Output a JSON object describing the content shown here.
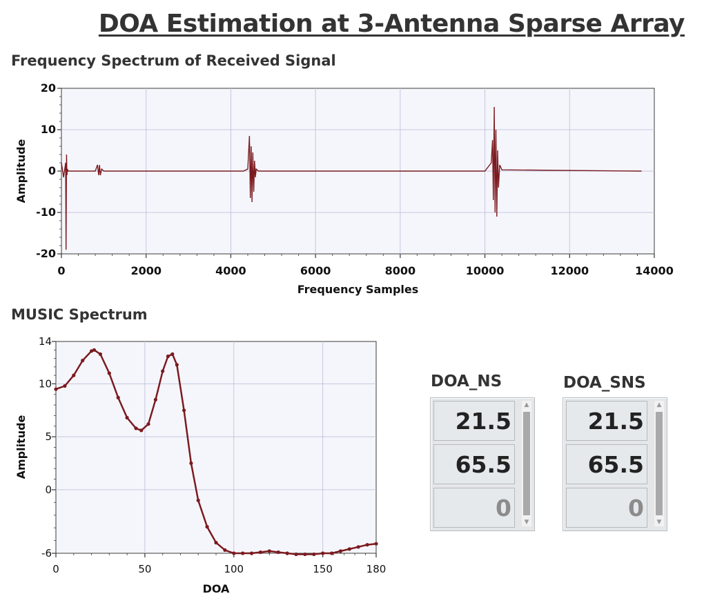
{
  "title": "DOA Estimation at 3-Antenna Sparse Array",
  "spectrum_section_title": "Frequency Spectrum of Received Signal",
  "music_section_title": "MUSIC Spectrum",
  "colors": {
    "trace": "#7b1a1f",
    "plot_bg": "#f5f6fb",
    "grid": "#c5c5e0"
  },
  "doa_ns": {
    "label": "DOA_NS",
    "values": [
      "21.5",
      "65.5",
      "0"
    ]
  },
  "doa_sns": {
    "label": "DOA_SNS",
    "values": [
      "21.5",
      "65.5",
      "0"
    ]
  },
  "chart_data": [
    {
      "type": "line",
      "title": "Frequency Spectrum of Received Signal",
      "xlabel": "Frequency Samples",
      "ylabel": "Amplitude",
      "xlim": [
        0,
        14000
      ],
      "ylim": [
        -20,
        20
      ],
      "x_ticks": [
        0,
        2000,
        4000,
        6000,
        8000,
        10000,
        12000,
        14000
      ],
      "y_ticks": [
        -20,
        -10,
        0,
        10,
        20
      ],
      "grid": true,
      "series": [
        {
          "x": [
            0,
            50,
            100,
            110,
            120,
            130,
            140,
            160,
            200,
            800,
            850,
            880,
            900,
            920,
            950,
            1000,
            4300,
            4400,
            4440,
            4460,
            4480,
            4500,
            4520,
            4540,
            4560,
            4580,
            4600,
            4650,
            10000,
            10150,
            10180,
            10200,
            10220,
            10240,
            10260,
            10280,
            10300,
            10320,
            10350,
            10400,
            13700
          ],
          "y": [
            2,
            -1.5,
            2,
            -19,
            4,
            -1,
            0.5,
            0,
            0,
            0,
            1.5,
            -1,
            1.5,
            -1,
            0.5,
            0,
            0,
            0.5,
            8.5,
            -6.5,
            6,
            -7.5,
            4.5,
            -5,
            2.5,
            -1.5,
            0.5,
            0,
            0,
            2,
            7.5,
            -7,
            15.5,
            -10,
            10,
            -11,
            5,
            -4,
            1.5,
            0.3,
            0
          ]
        }
      ]
    },
    {
      "type": "scatter",
      "title": "MUSIC Spectrum",
      "xlabel": "DOA",
      "ylabel": "Amplitude",
      "xlim": [
        0,
        180
      ],
      "ylim": [
        -6,
        14
      ],
      "x_ticks": [
        0,
        50,
        100,
        150,
        180
      ],
      "y_ticks": [
        -6,
        0,
        5,
        10,
        14
      ],
      "grid": true,
      "series": [
        {
          "x": [
            0,
            5,
            10,
            15,
            20,
            21.5,
            25,
            30,
            35,
            40,
            45,
            48,
            52,
            56,
            60,
            63,
            65.5,
            68,
            72,
            76,
            80,
            85,
            90,
            95,
            100,
            105,
            110,
            115,
            120,
            125,
            130,
            135,
            140,
            145,
            150,
            155,
            160,
            165,
            170,
            175,
            180
          ],
          "y": [
            9.5,
            9.8,
            10.8,
            12.2,
            13.1,
            13.2,
            12.8,
            11,
            8.7,
            6.8,
            5.8,
            5.6,
            6.2,
            8.5,
            11.2,
            12.6,
            12.8,
            11.8,
            7.5,
            2.5,
            -1,
            -3.5,
            -5,
            -5.7,
            -6,
            -6,
            -6,
            -5.9,
            -5.8,
            -5.9,
            -6,
            -6.1,
            -6.1,
            -6.1,
            -6,
            -6,
            -5.8,
            -5.6,
            -5.4,
            -5.2,
            -5.1
          ]
        }
      ]
    }
  ]
}
